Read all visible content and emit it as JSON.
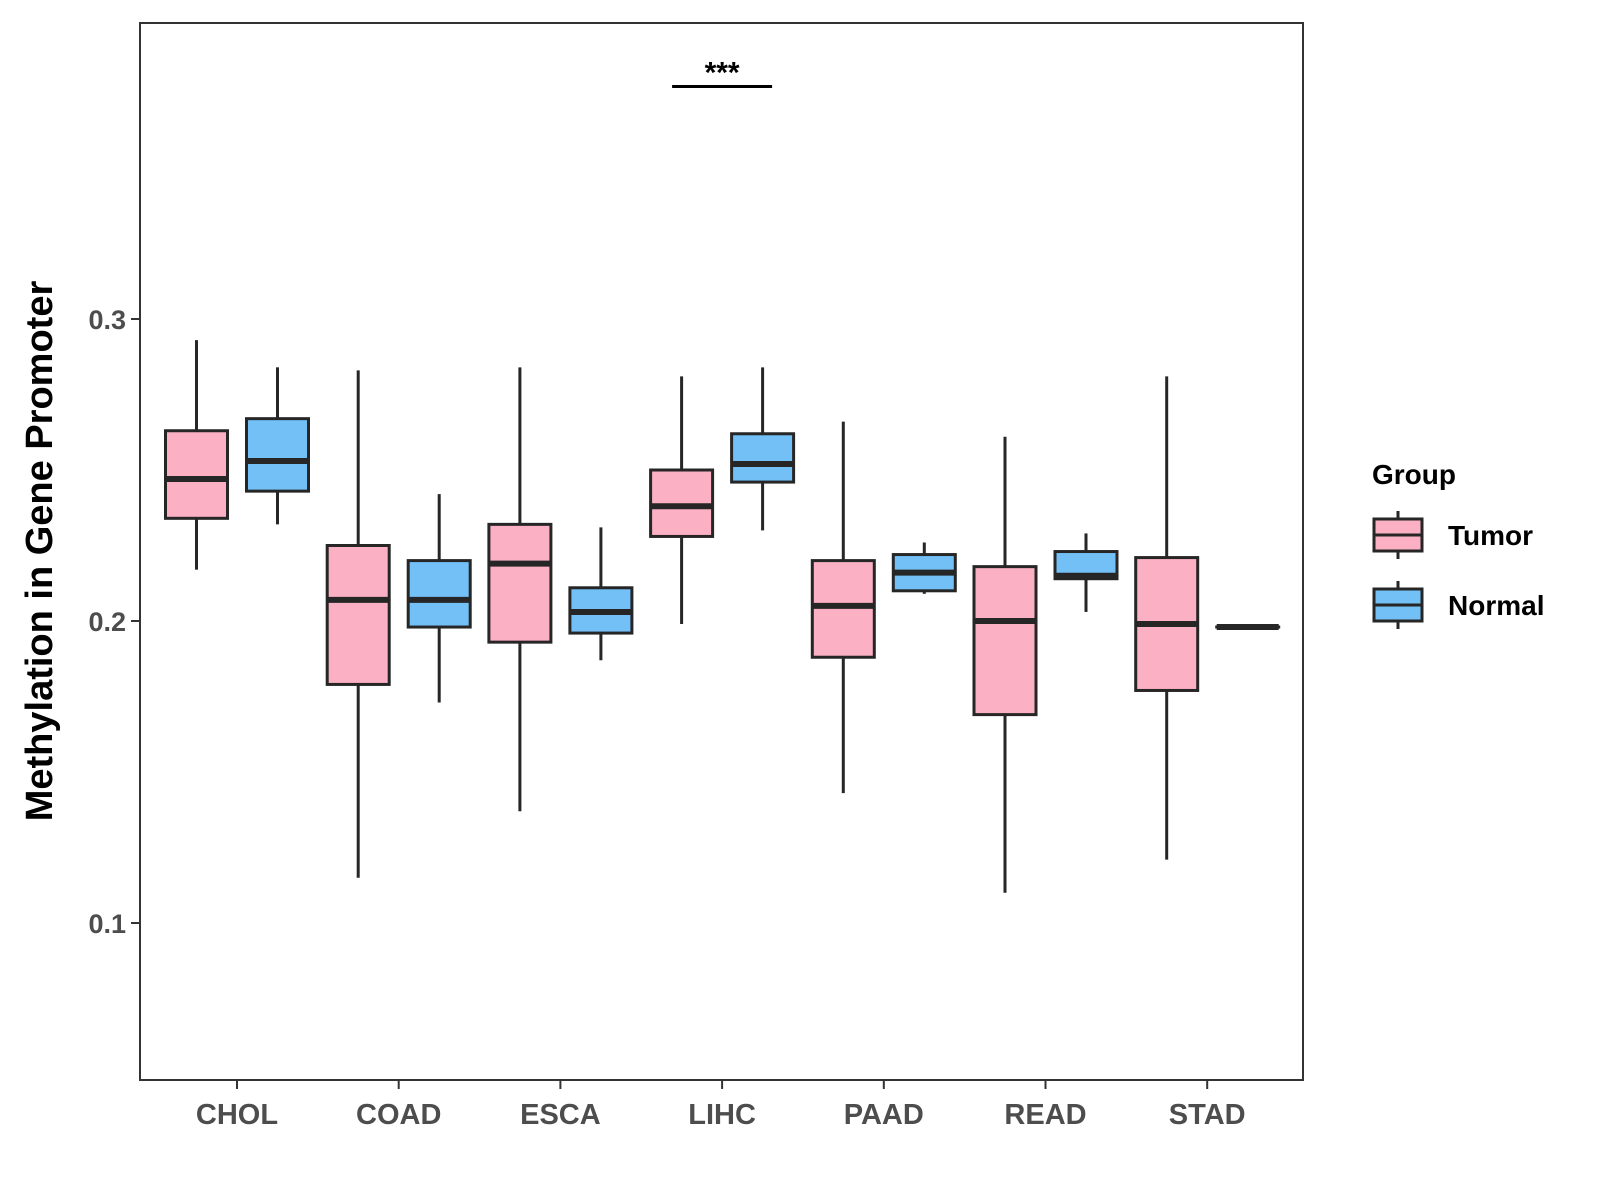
{
  "chart_data": {
    "type": "boxplot",
    "title": "",
    "xlabel": "",
    "ylabel": "Methylation in Gene Promoter",
    "ylim": [
      0.05,
      0.398
    ],
    "yticks": [
      0.1,
      0.2,
      0.3
    ],
    "ytick_labels": [
      "0.1",
      "0.2",
      "0.3"
    ],
    "grid": false,
    "categories": [
      "CHOL",
      "COAD",
      "ESCA",
      "LIHC",
      "PAAD",
      "READ",
      "STAD"
    ],
    "legend": {
      "title": "Group",
      "position": "right",
      "entries": [
        {
          "name": "Tumor",
          "color": "#FBB0C3"
        },
        {
          "name": "Normal",
          "color": "#73C0F7"
        }
      ]
    },
    "series": [
      {
        "name": "Tumor",
        "color": "#FBB0C3",
        "boxes": [
          {
            "whisker_low": 0.217,
            "q1": 0.234,
            "median": 0.247,
            "q3": 0.263,
            "whisker_high": 0.293
          },
          {
            "whisker_low": 0.115,
            "q1": 0.179,
            "median": 0.207,
            "q3": 0.225,
            "whisker_high": 0.283
          },
          {
            "whisker_low": 0.137,
            "q1": 0.193,
            "median": 0.219,
            "q3": 0.232,
            "whisker_high": 0.284
          },
          {
            "whisker_low": 0.199,
            "q1": 0.228,
            "median": 0.238,
            "q3": 0.25,
            "whisker_high": 0.281
          },
          {
            "whisker_low": 0.143,
            "q1": 0.188,
            "median": 0.205,
            "q3": 0.22,
            "whisker_high": 0.266
          },
          {
            "whisker_low": 0.11,
            "q1": 0.169,
            "median": 0.2,
            "q3": 0.218,
            "whisker_high": 0.261
          },
          {
            "whisker_low": 0.121,
            "q1": 0.177,
            "median": 0.199,
            "q3": 0.221,
            "whisker_high": 0.281
          }
        ]
      },
      {
        "name": "Normal",
        "color": "#73C0F7",
        "boxes": [
          {
            "whisker_low": 0.232,
            "q1": 0.243,
            "median": 0.253,
            "q3": 0.267,
            "whisker_high": 0.284
          },
          {
            "whisker_low": 0.173,
            "q1": 0.198,
            "median": 0.207,
            "q3": 0.22,
            "whisker_high": 0.242
          },
          {
            "whisker_low": 0.187,
            "q1": 0.196,
            "median": 0.203,
            "q3": 0.211,
            "whisker_high": 0.231
          },
          {
            "whisker_low": 0.23,
            "q1": 0.246,
            "median": 0.252,
            "q3": 0.262,
            "whisker_high": 0.284
          },
          {
            "whisker_low": 0.209,
            "q1": 0.21,
            "median": 0.216,
            "q3": 0.222,
            "whisker_high": 0.226
          },
          {
            "whisker_low": 0.203,
            "q1": 0.214,
            "median": 0.215,
            "q3": 0.223,
            "whisker_high": 0.229
          },
          {
            "whisker_low": 0.198,
            "q1": 0.198,
            "median": 0.198,
            "q3": 0.198,
            "whisker_high": 0.198
          }
        ]
      }
    ],
    "annotations": [
      {
        "category": "LIHC",
        "text": "***",
        "y": 0.377
      }
    ]
  }
}
